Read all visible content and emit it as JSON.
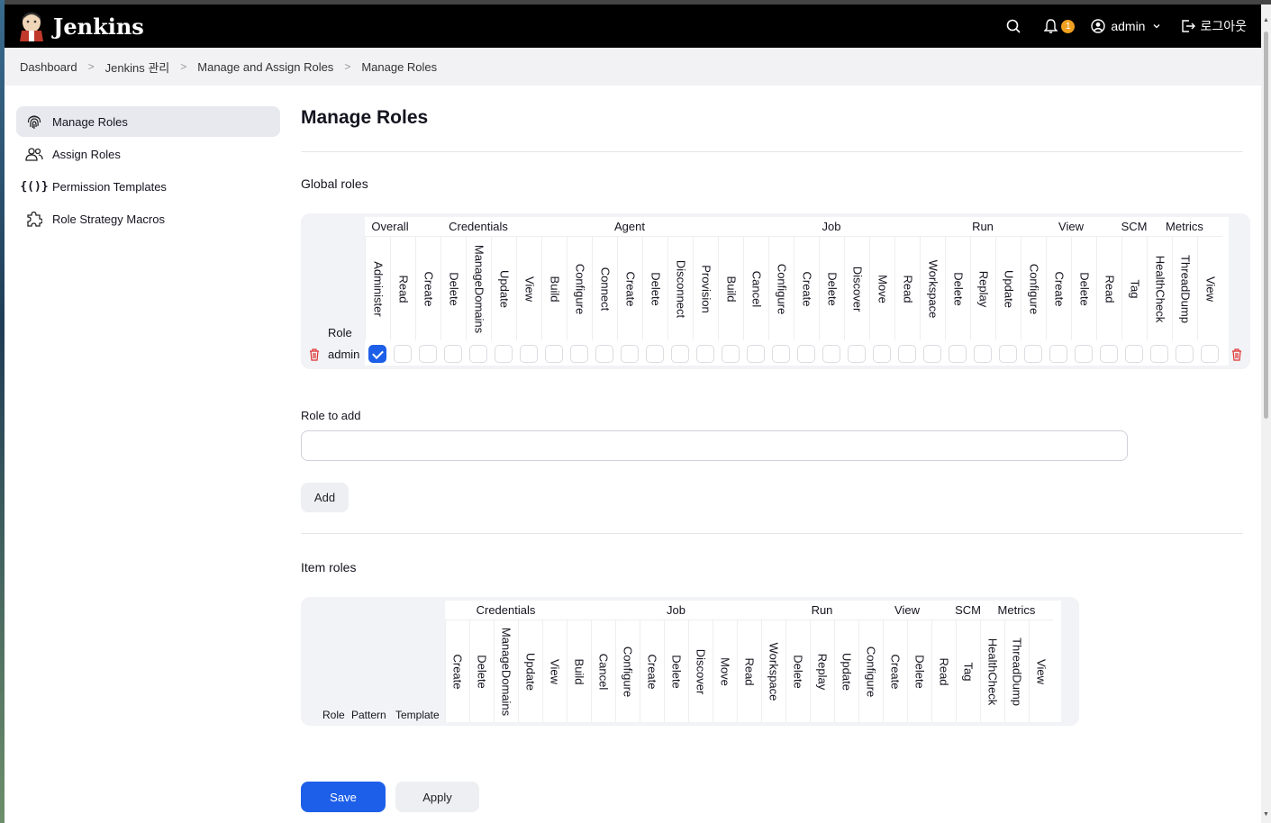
{
  "header": {
    "app_name": "Jenkins",
    "notification_count": "1",
    "user": "admin",
    "logout": "로그아웃"
  },
  "breadcrumb": [
    "Dashboard",
    "Jenkins 관리",
    "Manage and Assign Roles",
    "Manage Roles"
  ],
  "sidebar": {
    "items": [
      {
        "label": "Manage Roles",
        "icon": "fingerprint-icon",
        "active": true
      },
      {
        "label": "Assign Roles",
        "icon": "users-icon",
        "active": false
      },
      {
        "label": "Permission Templates",
        "icon": "braces-icon",
        "active": false
      },
      {
        "label": "Role Strategy Macros",
        "icon": "puzzle-icon",
        "active": false
      }
    ]
  },
  "main": {
    "title": "Manage Roles",
    "global_roles_title": "Global roles",
    "global_role_header": "Role",
    "global_categories": [
      {
        "name": "Overall",
        "perms": [
          "Administer",
          "Read"
        ]
      },
      {
        "name": "Credentials",
        "perms": [
          "Create",
          "Delete",
          "ManageDomains",
          "Update",
          "View"
        ]
      },
      {
        "name": "Agent",
        "perms": [
          "Build",
          "Configure",
          "Connect",
          "Create",
          "Delete",
          "Disconnect",
          "Provision"
        ]
      },
      {
        "name": "Job",
        "perms": [
          "Build",
          "Cancel",
          "Configure",
          "Create",
          "Delete",
          "Discover",
          "Move",
          "Read",
          "Workspace"
        ]
      },
      {
        "name": "Run",
        "perms": [
          "Delete",
          "Replay",
          "Update"
        ]
      },
      {
        "name": "View",
        "perms": [
          "Configure",
          "Create",
          "Delete",
          "Read"
        ]
      },
      {
        "name": "SCM",
        "perms": [
          "Tag"
        ]
      },
      {
        "name": "Metrics",
        "perms": [
          "HealthCheck",
          "ThreadDump",
          "View"
        ]
      }
    ],
    "global_rows": [
      {
        "role": "admin",
        "checked": [
          "Overall.Administer"
        ]
      }
    ],
    "role_to_add_label": "Role to add",
    "role_to_add_value": "",
    "add_button": "Add",
    "item_roles_title": "Item roles",
    "item_headers": {
      "role": "Role",
      "pattern": "Pattern",
      "template": "Template"
    },
    "item_categories": [
      {
        "name": "Credentials",
        "perms": [
          "Create",
          "Delete",
          "ManageDomains",
          "Update",
          "View"
        ]
      },
      {
        "name": "Job",
        "perms": [
          "Build",
          "Cancel",
          "Configure",
          "Create",
          "Delete",
          "Discover",
          "Move",
          "Read",
          "Workspace"
        ]
      },
      {
        "name": "Run",
        "perms": [
          "Delete",
          "Replay",
          "Update"
        ]
      },
      {
        "name": "View",
        "perms": [
          "Configure",
          "Create",
          "Delete",
          "Read"
        ]
      },
      {
        "name": "SCM",
        "perms": [
          "Tag"
        ]
      },
      {
        "name": "Metrics",
        "perms": [
          "HealthCheck",
          "ThreadDump",
          "View"
        ]
      }
    ]
  },
  "footer": {
    "save": "Save",
    "apply": "Apply"
  },
  "colors": {
    "accent": "#1d5fe8",
    "danger": "#e03030",
    "badge": "#f0a020"
  }
}
